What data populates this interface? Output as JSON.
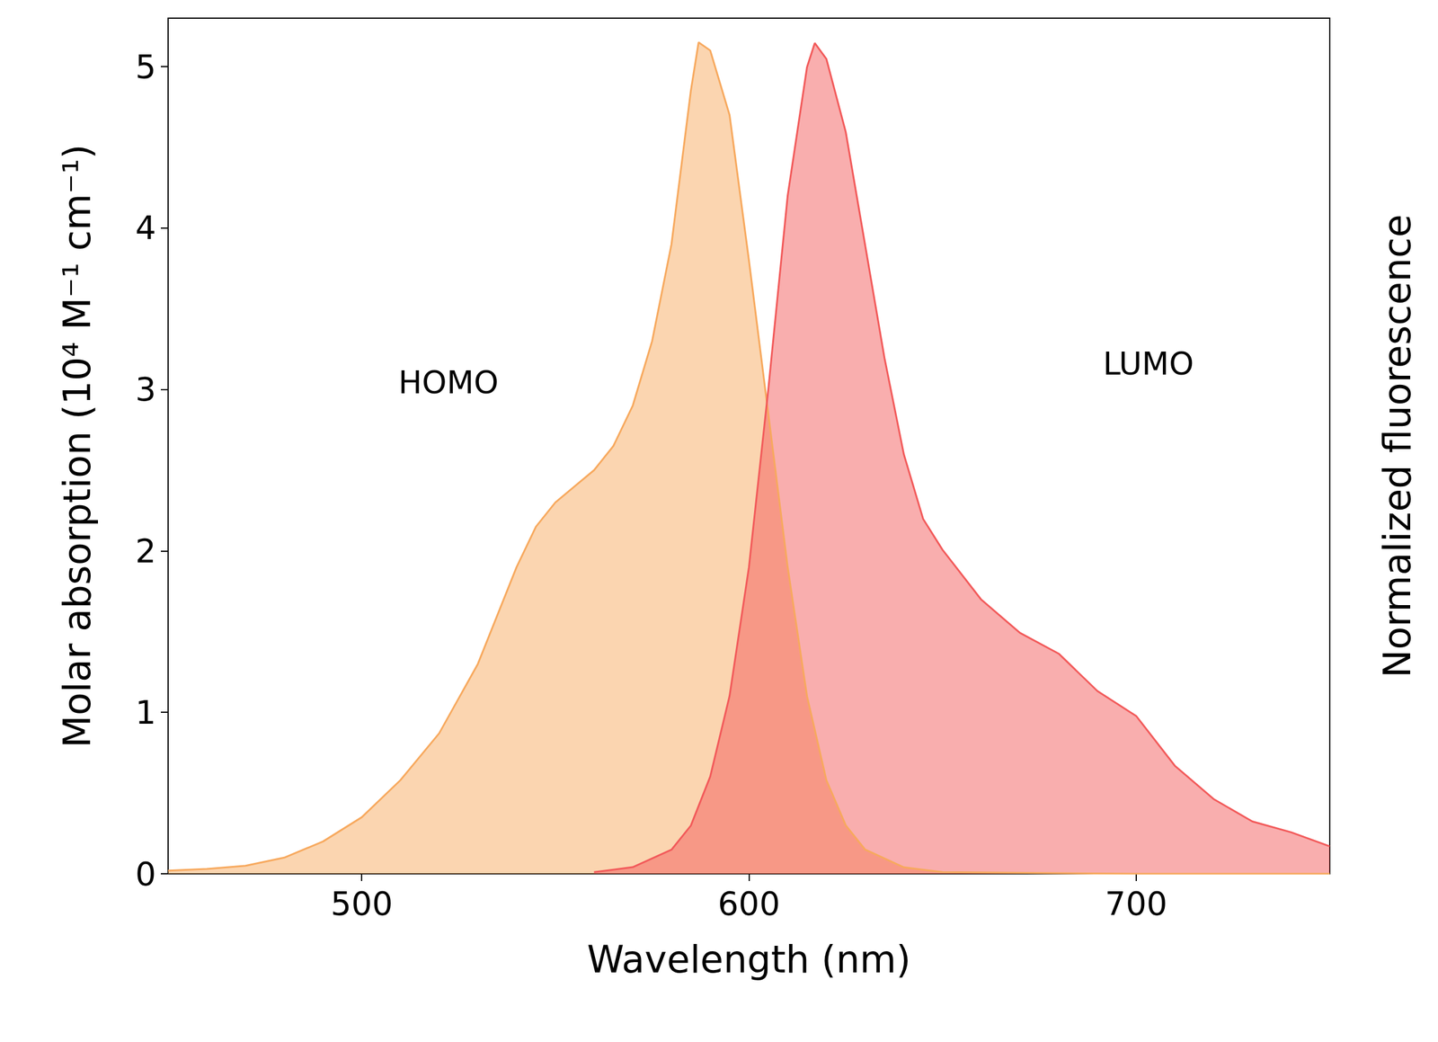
{
  "chart_data": {
    "type": "area",
    "x_label": "Wavelength (nm)",
    "y_label": "Molar absorption (10⁴ M⁻¹ cm⁻¹)",
    "y2_label": "Normalized fluorescence",
    "xlim": [
      450,
      750
    ],
    "xticks": [
      500,
      600,
      700
    ],
    "ylim": [
      0,
      5.3
    ],
    "yticks": [
      0,
      1,
      2,
      3,
      4,
      5
    ],
    "y2lim": [
      0,
      1.03
    ],
    "grid": false,
    "annotations": [
      "HOMO",
      "LUMO"
    ],
    "series": [
      {
        "color": "#f7a95e",
        "axis": "y",
        "x": [
          450,
          460,
          470,
          480,
          490,
          500,
          510,
          520,
          530,
          540,
          545,
          550,
          555,
          560,
          565,
          570,
          575,
          580,
          585,
          587,
          590,
          595,
          600,
          605,
          610,
          615,
          620,
          625,
          630,
          640,
          650,
          700,
          750
        ],
        "values": [
          0.02,
          0.03,
          0.05,
          0.1,
          0.2,
          0.35,
          0.58,
          0.87,
          1.3,
          1.9,
          2.15,
          2.3,
          2.4,
          2.5,
          2.65,
          2.9,
          3.3,
          3.9,
          4.85,
          5.15,
          5.1,
          4.7,
          3.8,
          2.85,
          1.9,
          1.1,
          0.58,
          0.3,
          0.15,
          0.04,
          0.01,
          0,
          0
        ]
      },
      {
        "color": "#f25a5a",
        "axis": "y2",
        "x": [
          560,
          570,
          580,
          585,
          590,
          595,
          600,
          605,
          610,
          615,
          617,
          620,
          625,
          630,
          635,
          640,
          645,
          650,
          660,
          670,
          680,
          690,
          700,
          710,
          720,
          730,
          740,
          750
        ],
        "values": [
          0.002,
          0.008,
          0.029,
          0.058,
          0.117,
          0.214,
          0.369,
          0.583,
          0.816,
          0.971,
          1.0,
          0.981,
          0.893,
          0.757,
          0.621,
          0.505,
          0.427,
          0.39,
          0.33,
          0.29,
          0.265,
          0.22,
          0.19,
          0.13,
          0.09,
          0.063,
          0.05,
          0.033
        ]
      }
    ]
  }
}
